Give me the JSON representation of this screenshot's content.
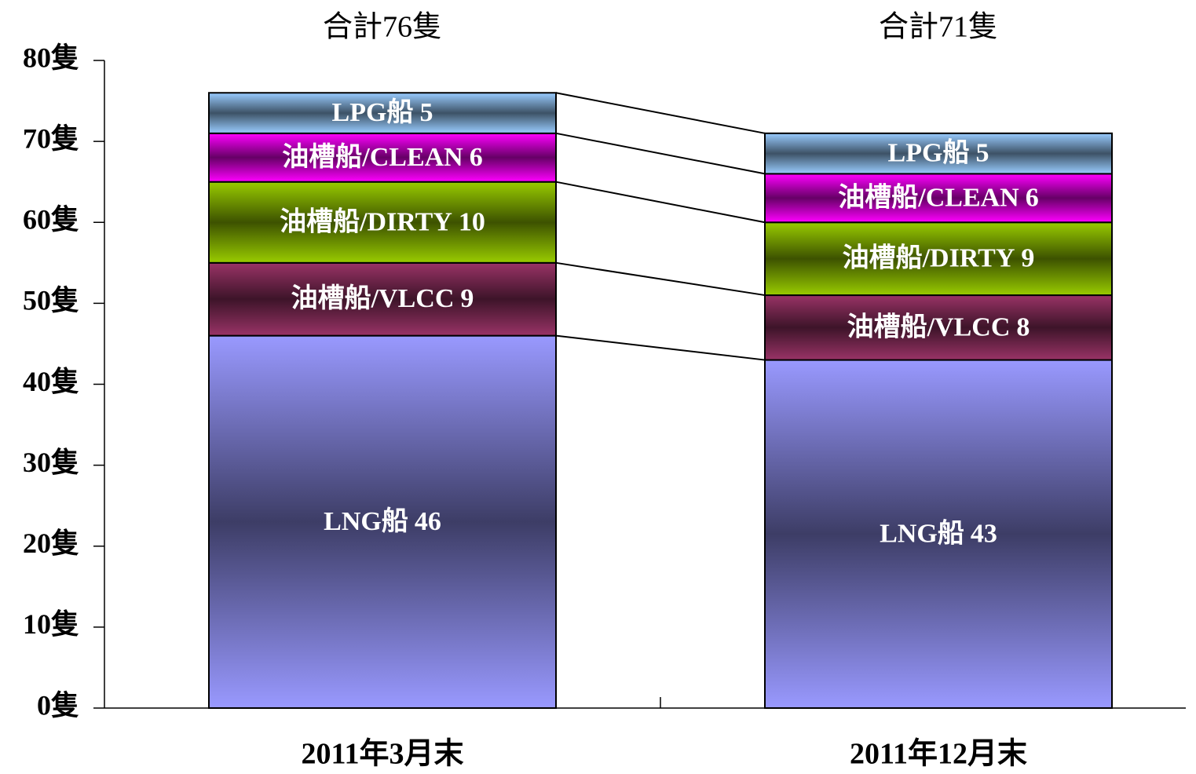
{
  "chart_data": {
    "type": "stacked_bar",
    "categories": [
      "2011年3月末",
      "2011年12月末"
    ],
    "annotations": [
      "合計76隻",
      "合計71隻"
    ],
    "series": [
      {
        "name": "LNG船",
        "color": "#9999ff",
        "values": [
          46,
          43
        ]
      },
      {
        "name": "油槽船/VLCC",
        "color": "#993366",
        "values": [
          9,
          8
        ]
      },
      {
        "name": "油槽船/DIRTY",
        "color": "#99cc00",
        "values": [
          10,
          9
        ]
      },
      {
        "name": "油槽船/CLEAN",
        "color": "#ff00ff",
        "values": [
          6,
          6
        ]
      },
      {
        "name": "LPG船",
        "color": "#99ccff",
        "values": [
          5,
          5
        ]
      }
    ],
    "ylim": [
      0,
      80
    ],
    "yticks": [
      {
        "value": 0,
        "label": "0隻"
      },
      {
        "value": 10,
        "label": "10隻"
      },
      {
        "value": 20,
        "label": "20隻"
      },
      {
        "value": 30,
        "label": "30隻"
      },
      {
        "value": 40,
        "label": "40隻"
      },
      {
        "value": 50,
        "label": "50隻"
      },
      {
        "value": 60,
        "label": "60隻"
      },
      {
        "value": 70,
        "label": "70隻"
      },
      {
        "value": 80,
        "label": "80隻"
      }
    ],
    "connectors": true
  }
}
